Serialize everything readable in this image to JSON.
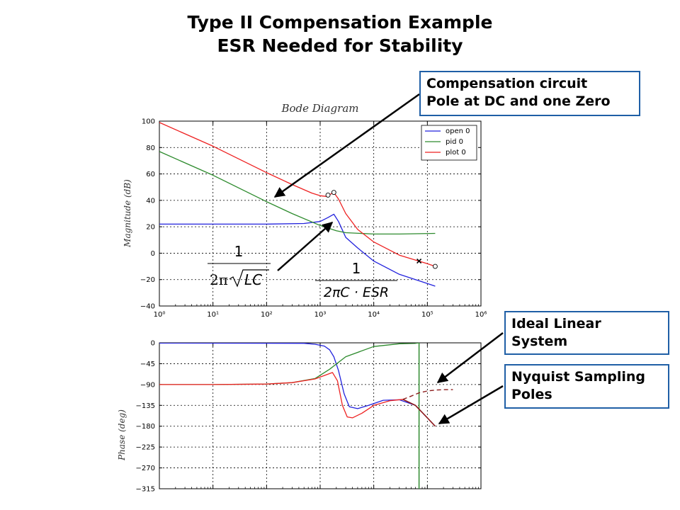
{
  "slide": {
    "title_line1": "Type II Compensation Example",
    "title_line2": "ESR Needed for Stability"
  },
  "callouts": {
    "compensation": [
      "Compensation circuit",
      "Pole at DC and one Zero"
    ],
    "ideal": [
      "Ideal Linear",
      "System"
    ],
    "nyquist": [
      "Nyquist Sampling",
      "Poles"
    ]
  },
  "formulas": {
    "lc": {
      "numerator": "1",
      "denominator_prefix": "2π",
      "denominator_radicand": "LC"
    },
    "esr": {
      "numerator": "1",
      "denominator": "2πC · ESR"
    }
  },
  "colors": {
    "open": "#2222dd",
    "pid": "#2e8b2e",
    "plot": "#ee2222",
    "nyquist": "#8b1a1a",
    "callout_border": "#1f5fa6"
  },
  "chart_data": [
    {
      "type": "line",
      "title": "Bode Diagram",
      "ylabel": "Magnitude (dB)",
      "xscale": "log",
      "xlim": [
        1,
        1000000
      ],
      "ylim": [
        -40,
        100
      ],
      "x_ticks": [
        "10⁰",
        "10¹",
        "10²",
        "10³",
        "10⁴",
        "10⁵",
        "10⁶"
      ],
      "y_ticks": [
        "100",
        "80",
        "60",
        "40",
        "20",
        "0",
        "−20",
        "−40"
      ],
      "grid": true,
      "legend": "top-right",
      "series": [
        {
          "name": "open 0",
          "x": [
            1,
            10,
            100,
            500,
            1000,
            1400,
            1800,
            2200,
            3000,
            5000,
            10000,
            30000,
            100000,
            140000
          ],
          "y": [
            22,
            22,
            22,
            22.5,
            24,
            27,
            29.5,
            24,
            12,
            4,
            -6,
            -16,
            -23,
            -25
          ]
        },
        {
          "name": "pid 0",
          "x": [
            1,
            10,
            100,
            300,
            1000,
            2000,
            3000,
            10000,
            30000,
            140000
          ],
          "y": [
            77,
            59,
            39,
            30,
            21,
            17,
            15.5,
            14.5,
            14.5,
            15
          ]
        },
        {
          "name": "plot 0",
          "x": [
            1,
            10,
            100,
            300,
            700,
            1000,
            1300,
            1800,
            2200,
            3000,
            5000,
            10000,
            30000,
            100000,
            140000
          ],
          "y": [
            99,
            81,
            61,
            52,
            45.5,
            43.5,
            43,
            46,
            41,
            30,
            18,
            8.5,
            -1.5,
            -8,
            -10
          ]
        }
      ],
      "markers": [
        {
          "kind": "circle",
          "x": 1400,
          "y": 44
        },
        {
          "kind": "circle",
          "x": 1800,
          "y": 46
        },
        {
          "kind": "cross",
          "x": 70000,
          "y": -6
        },
        {
          "kind": "circle",
          "x": 140000,
          "y": -10
        }
      ]
    },
    {
      "type": "line",
      "ylabel": "Phase (deg)",
      "xscale": "log",
      "xlim": [
        1,
        1000000
      ],
      "ylim": [
        -315,
        0
      ],
      "y_ticks": [
        "0",
        "−45",
        "−90",
        "−135",
        "−180",
        "−225",
        "−270",
        "−315"
      ],
      "grid": true,
      "series": [
        {
          "name": "open",
          "x": [
            1,
            500,
            800,
            1200,
            1500,
            1800,
            2200,
            2800,
            3500,
            5000,
            8000,
            15000,
            30000,
            60000,
            100000,
            140000
          ],
          "y": [
            -0.5,
            -1,
            -3,
            -7,
            -15,
            -30,
            -60,
            -110,
            -138,
            -142,
            -135,
            -124,
            -123,
            -135,
            -162,
            -180
          ]
        },
        {
          "name": "pid",
          "x": [
            1,
            10,
            100,
            300,
            800,
            1500,
            3000,
            10000,
            30000,
            60000,
            70000
          ],
          "y": [
            -90,
            -90,
            -89,
            -86,
            -77,
            -57,
            -30,
            -8,
            -2,
            -1,
            0
          ]
        },
        {
          "name": "pid",
          "x": [
            70000,
            70000
          ],
          "y": [
            0,
            -315
          ]
        },
        {
          "name": "plot",
          "x": [
            1,
            10,
            100,
            300,
            800,
            1300,
            1700,
            2100,
            2600,
            3200,
            4000,
            6000,
            10000,
            20000,
            35000,
            60000,
            100000,
            140000
          ],
          "y": [
            -90,
            -90,
            -89,
            -86,
            -78,
            -69,
            -64,
            -82,
            -135,
            -160,
            -162,
            -152,
            -135,
            -125,
            -122,
            -135,
            -162,
            -180
          ]
        },
        {
          "name": "ideal",
          "x": [
            35000,
            50000,
            70000,
            100000,
            140000,
            200000,
            300000
          ],
          "y": [
            -122,
            -115,
            -108,
            -104,
            -102,
            -101,
            -101
          ]
        }
      ]
    }
  ]
}
